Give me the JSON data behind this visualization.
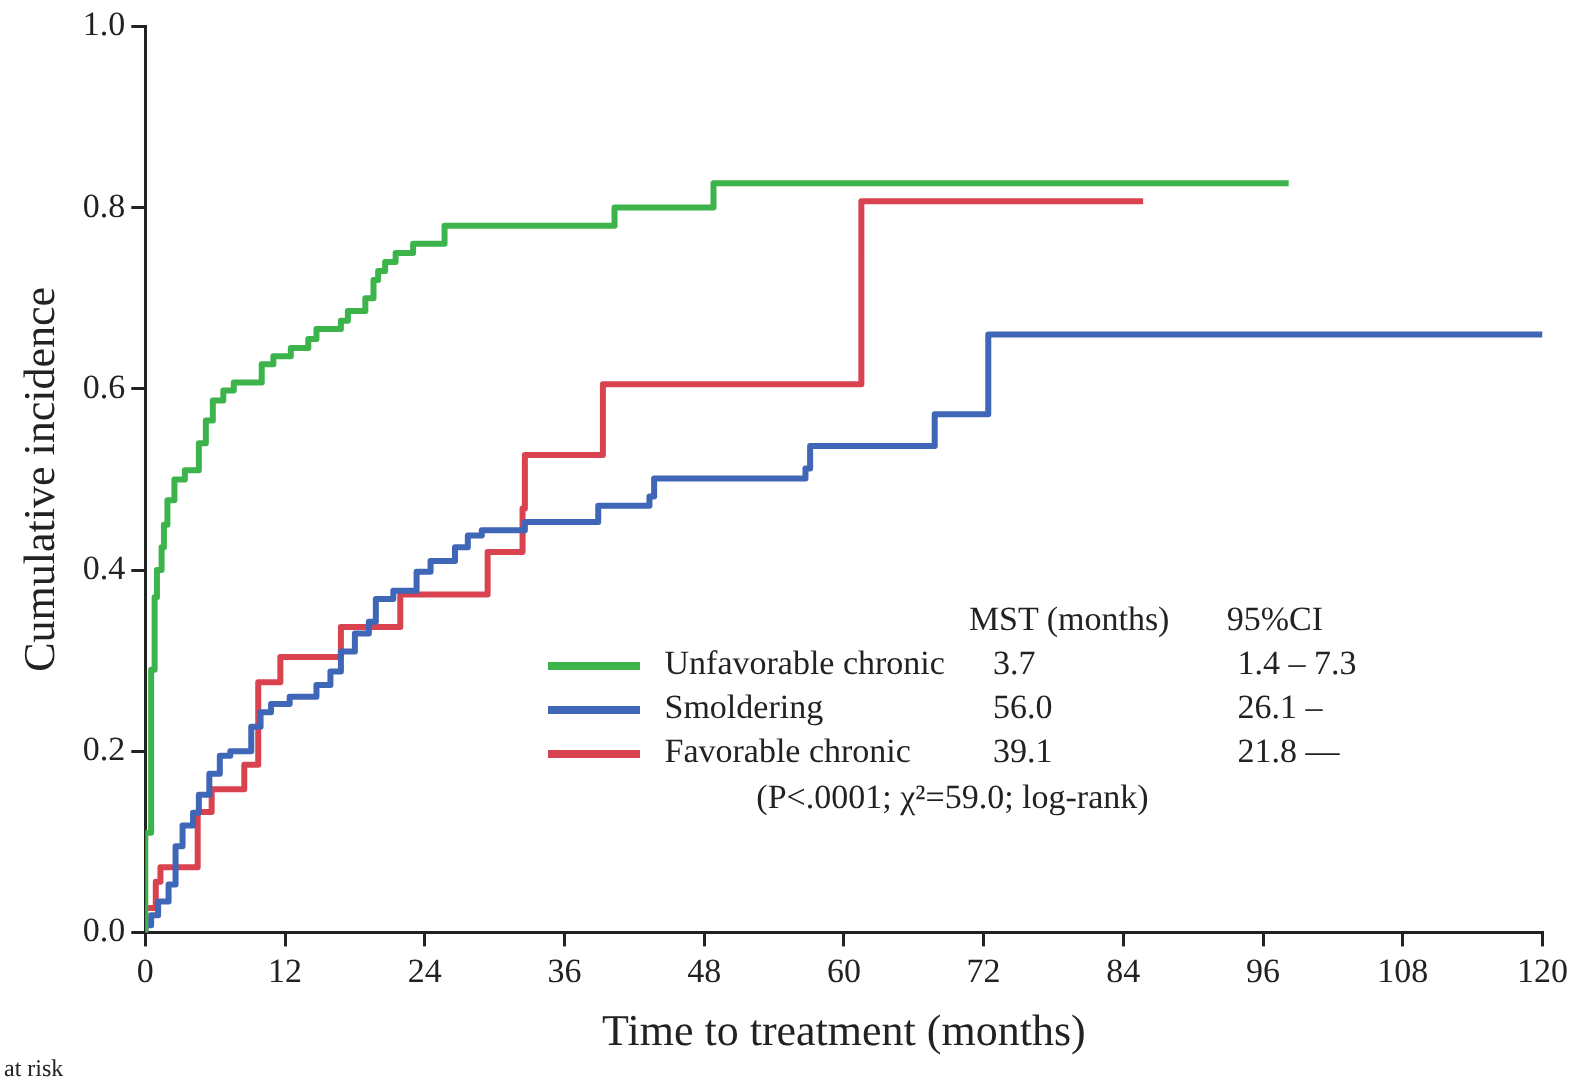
{
  "chart_data": {
    "type": "step",
    "xlabel": "Time to treatment (months)",
    "ylabel": "Cumulative incidence",
    "xlim": [
      0,
      120
    ],
    "xticks": [
      0,
      12,
      24,
      36,
      48,
      60,
      72,
      84,
      96,
      108,
      120
    ],
    "ylim": [
      0,
      1
    ],
    "yticks": [
      {
        "value": 0,
        "label": "0.0"
      },
      {
        "value": 0.2,
        "label": "0.2"
      },
      {
        "value": 0.4,
        "label": "0.4"
      },
      {
        "value": 0.6,
        "label": "0.6"
      },
      {
        "value": 0.8,
        "label": "0.8"
      },
      {
        "value": 1,
        "label": "1.0"
      }
    ],
    "grid": false,
    "legend": "bottom",
    "marker": "none",
    "line_style": "solid",
    "series": [
      {
        "name": "Unfavorable chronic",
        "color": "#3cb44b",
        "x": [
          0,
          0.5,
          0.8,
          1.0,
          1.4,
          1.6,
          1.9,
          2.5,
          3.4,
          4.6,
          5.2,
          5.8,
          6.7,
          7.6,
          10,
          11,
          12.5,
          14,
          14.7,
          16.8,
          17.4,
          18.9,
          19.6,
          20,
          20.6,
          21.5,
          23,
          25.7,
          40.3,
          48.8,
          59.5,
          98.2
        ],
        "values": [
          0,
          0.11,
          0.29,
          0.37,
          0.4,
          0.425,
          0.45,
          0.477,
          0.5,
          0.51,
          0.54,
          0.565,
          0.587,
          0.598,
          0.607,
          0.627,
          0.636,
          0.645,
          0.655,
          0.666,
          0.675,
          0.686,
          0.7,
          0.72,
          0.73,
          0.74,
          0.75,
          0.76,
          0.78,
          0.8,
          0.827,
          0.827
        ]
      },
      {
        "name": "Smoldering",
        "color": "#4066b8",
        "x": [
          0,
          0.5,
          1.1,
          2.0,
          2.6,
          3.2,
          4.1,
          4.6,
          5.5,
          6.4,
          7.3,
          9.1,
          9.9,
          10.8,
          12.4,
          14.7,
          15.9,
          16.8,
          18,
          19.2,
          19.8,
          21.3,
          23.3,
          24.5,
          26.6,
          27.7,
          28.9,
          32.6,
          38.9,
          43.3,
          43.7,
          56.7,
          57.1,
          67.8,
          72.4,
          102,
          120
        ],
        "values": [
          0,
          0.008,
          0.019,
          0.034,
          0.053,
          0.095,
          0.118,
          0.132,
          0.152,
          0.175,
          0.195,
          0.2,
          0.227,
          0.243,
          0.252,
          0.26,
          0.273,
          0.288,
          0.31,
          0.33,
          0.343,
          0.368,
          0.377,
          0.398,
          0.41,
          0.425,
          0.438,
          0.444,
          0.453,
          0.471,
          0.481,
          0.501,
          0.512,
          0.537,
          0.572,
          0.66,
          0.66
        ]
      },
      {
        "name": "Favorable chronic",
        "color": "#d9434f",
        "x": [
          0,
          0.9,
          1.3,
          4.5,
          5.7,
          8.5,
          9.7,
          11.6,
          16.8,
          21.9,
          29.4,
          32.4,
          32.6,
          39.3,
          61.5,
          84.3,
          85.7
        ],
        "values": [
          0,
          0.027,
          0.056,
          0.072,
          0.133,
          0.158,
          0.185,
          0.276,
          0.304,
          0.337,
          0.373,
          0.42,
          0.468,
          0.527,
          0.605,
          0.807,
          0.807
        ]
      }
    ],
    "annotations": [
      "MST (months)",
      "95%CI",
      "3.7",
      "1.4 – 7.3",
      "56.0",
      "26.1 –",
      "39.1",
      "21.8 —",
      "(P<.0001; χ²=59.0; log-rank)",
      "at risk"
    ]
  }
}
